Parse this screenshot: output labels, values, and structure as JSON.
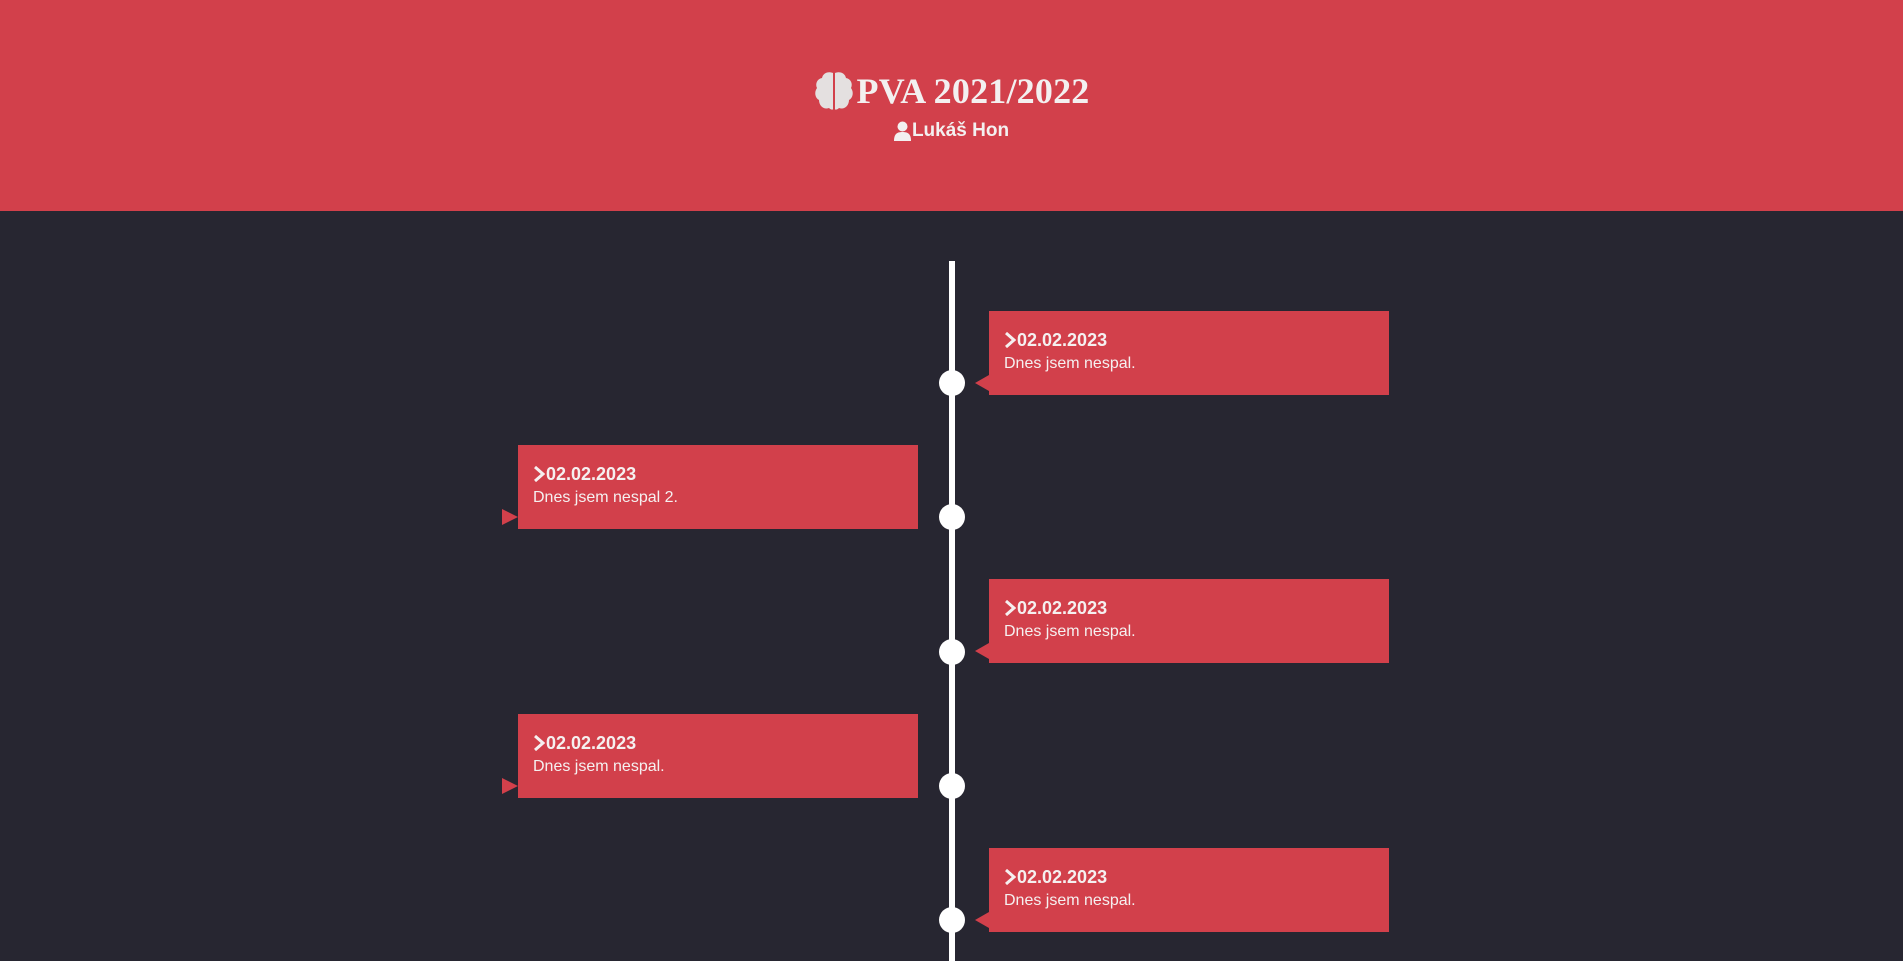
{
  "header": {
    "title": "PVA 2021/2022",
    "title_icon": "brain-icon",
    "author": "Lukáš Hon",
    "author_icon": "user-icon",
    "background_color": "#d2404b"
  },
  "colors": {
    "page_background": "#272631",
    "accent": "#d2404b",
    "text": "#f3f0f0",
    "timeline_line": "#ffffff"
  },
  "timeline": {
    "entries": [
      {
        "side": "right",
        "date": "02.02.2023",
        "text": "Dnes jsem nespal.",
        "icon": "chevron-right-icon"
      },
      {
        "side": "left",
        "date": "02.02.2023",
        "text": "Dnes jsem nespal 2.",
        "icon": "chevron-right-icon"
      },
      {
        "side": "right",
        "date": "02.02.2023",
        "text": "Dnes jsem nespal.",
        "icon": "chevron-right-icon"
      },
      {
        "side": "left",
        "date": "02.02.2023",
        "text": "Dnes jsem nespal.",
        "icon": "chevron-right-icon"
      },
      {
        "side": "right",
        "date": "02.02.2023",
        "text": "Dnes jsem nespal.",
        "icon": "chevron-right-icon"
      }
    ]
  }
}
